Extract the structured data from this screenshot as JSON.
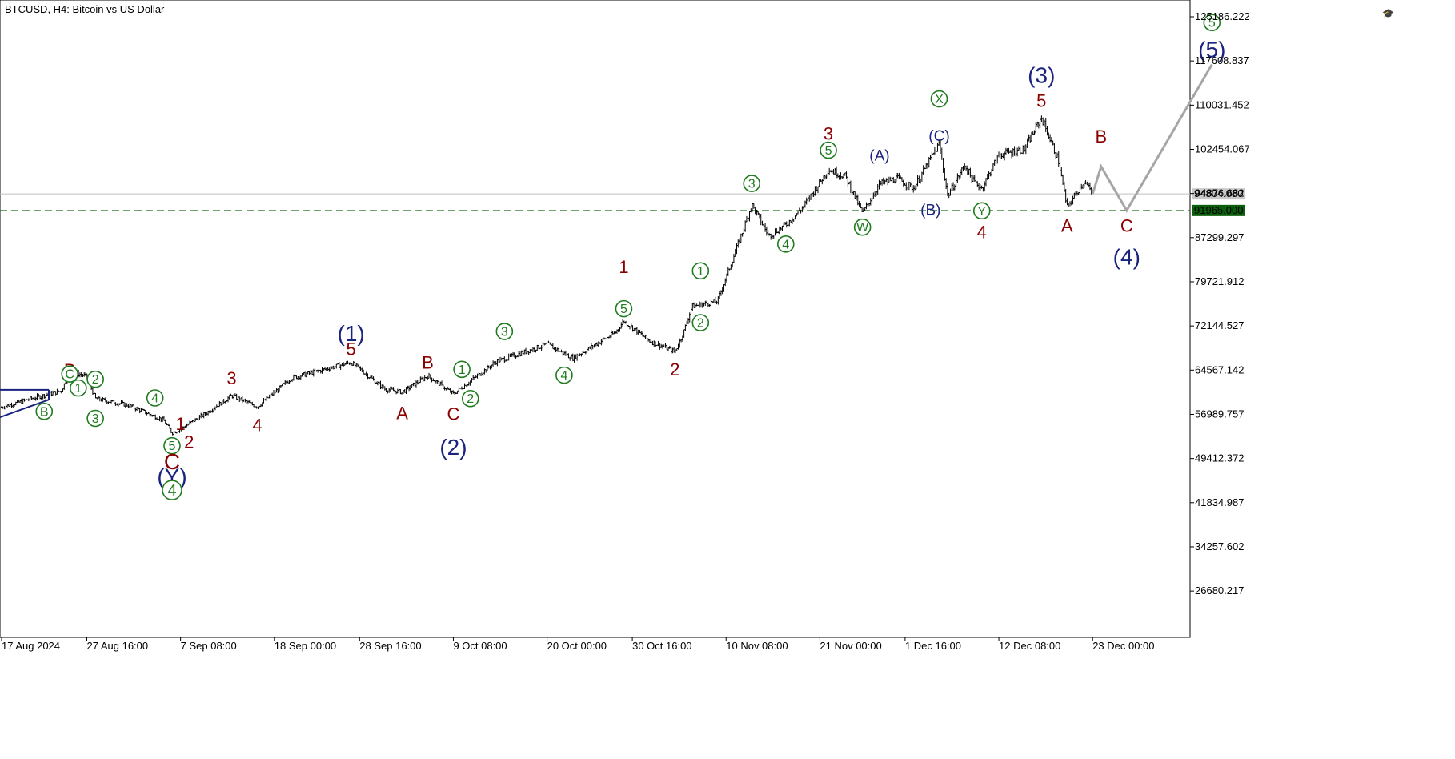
{
  "symbol_text": "BTCUSD, H4:  Bitcoin vs US Dollar",
  "colors": {
    "background": "#ffffff",
    "candle": "#000000",
    "projection": "#a6a6a6",
    "dark_red": "#8b0000",
    "navy": "#1a237e",
    "green": "#1e7b1e",
    "current_price_line": "#c0c0c0",
    "target_line": "#1a6b1a",
    "target_badge": "#0b5e0b",
    "current_badge": "#c8c8c8"
  },
  "icons": [
    "graduation-cap-icon",
    "trash-icon"
  ],
  "chart_data": {
    "type": "candlestick",
    "timeframe": "H4",
    "y_axis": {
      "ticks": [
        "125186.222",
        "117608.837",
        "110031.452",
        "102454.067",
        "94876.682",
        "87299.297",
        "79721.912",
        "72144.527",
        "64567.142",
        "56989.757",
        "49412.372",
        "41834.987",
        "34257.602",
        "26680.217"
      ]
    },
    "x_axis": {
      "ticks": [
        "17 Aug 2024",
        "27 Aug 16:00",
        "7 Sep 08:00",
        "18 Sep 00:00",
        "28 Sep 16:00",
        "9 Oct 08:00",
        "20 Oct 00:00",
        "30 Oct 16:00",
        "10 Nov 08:00",
        "21 Nov 00:00",
        "1 Dec 16:00",
        "12 Dec 08:00",
        "23 Dec 00:00"
      ]
    },
    "price_lines": [
      {
        "name": "current",
        "value": 94804.08,
        "label": "94804.080"
      },
      {
        "name": "target",
        "value": 91965.0,
        "label": "91965.000"
      }
    ],
    "price_path": [
      {
        "date": "2024-08-17",
        "price": 58200
      },
      {
        "date": "2024-08-20",
        "price": 59500
      },
      {
        "date": "2024-08-24",
        "price": 61000
      },
      {
        "date": "2024-08-25",
        "price": 64300
      },
      {
        "date": "2024-08-27",
        "price": 63500
      },
      {
        "date": "2024-08-28",
        "price": 59700
      },
      {
        "date": "2024-09-01",
        "price": 58500
      },
      {
        "date": "2024-09-05",
        "price": 56000
      },
      {
        "date": "2024-09-06",
        "price": 53800
      },
      {
        "date": "2024-09-07",
        "price": 54500
      },
      {
        "date": "2024-09-10",
        "price": 57200
      },
      {
        "date": "2024-09-13",
        "price": 60200
      },
      {
        "date": "2024-09-16",
        "price": 58300
      },
      {
        "date": "2024-09-20",
        "price": 63200
      },
      {
        "date": "2024-09-27",
        "price": 65900
      },
      {
        "date": "2024-10-01",
        "price": 61300
      },
      {
        "date": "2024-10-03",
        "price": 60800
      },
      {
        "date": "2024-10-06",
        "price": 63600
      },
      {
        "date": "2024-10-09",
        "price": 60500
      },
      {
        "date": "2024-10-14",
        "price": 66000
      },
      {
        "date": "2024-10-20",
        "price": 69000
      },
      {
        "date": "2024-10-23",
        "price": 66600
      },
      {
        "date": "2024-10-28",
        "price": 71000
      },
      {
        "date": "2024-10-29",
        "price": 73000
      },
      {
        "date": "2024-11-01",
        "price": 69600
      },
      {
        "date": "2024-11-04",
        "price": 67700
      },
      {
        "date": "2024-11-05",
        "price": 71000
      },
      {
        "date": "2024-11-06",
        "price": 75500
      },
      {
        "date": "2024-11-09",
        "price": 76400
      },
      {
        "date": "2024-11-10",
        "price": 80500
      },
      {
        "date": "2024-11-12",
        "price": 88600
      },
      {
        "date": "2024-11-13",
        "price": 93000
      },
      {
        "date": "2024-11-15",
        "price": 87600
      },
      {
        "date": "2024-11-17",
        "price": 89500
      },
      {
        "date": "2024-11-19",
        "price": 92500
      },
      {
        "date": "2024-11-22",
        "price": 99000
      },
      {
        "date": "2024-11-24",
        "price": 97800
      },
      {
        "date": "2024-11-26",
        "price": 91500
      },
      {
        "date": "2024-11-28",
        "price": 96500
      },
      {
        "date": "2024-11-30",
        "price": 97500
      },
      {
        "date": "2024-12-02",
        "price": 95800
      },
      {
        "date": "2024-12-05",
        "price": 103400
      },
      {
        "date": "2024-12-06",
        "price": 94500
      },
      {
        "date": "2024-12-08",
        "price": 99800
      },
      {
        "date": "2024-12-09",
        "price": 97000
      },
      {
        "date": "2024-12-10",
        "price": 95800
      },
      {
        "date": "2024-12-12",
        "price": 101500
      },
      {
        "date": "2024-12-15",
        "price": 102500
      },
      {
        "date": "2024-12-17",
        "price": 107900
      },
      {
        "date": "2024-12-19",
        "price": 100500
      },
      {
        "date": "2024-12-20",
        "price": 92500
      },
      {
        "date": "2024-12-22",
        "price": 97000
      },
      {
        "date": "2024-12-23",
        "price": 94800
      }
    ],
    "projection_path": [
      {
        "date": "2024-12-23",
        "price": 94800,
        "label": "A"
      },
      {
        "date": "2024-12-24",
        "price": 99500,
        "label": "B"
      },
      {
        "date": "2024-12-27",
        "price": 91965,
        "label": "C"
      },
      {
        "date": "2025-01-06",
        "price": 117000,
        "label": "(5)"
      }
    ],
    "annotations": [
      {
        "text": "B",
        "date": "2024-08-25",
        "price": 64700,
        "style": "dark-red"
      },
      {
        "text": "C",
        "date": "2024-08-25",
        "price": 63900,
        "style": "green-circle"
      },
      {
        "text": "2",
        "date": "2024-08-28",
        "price": 63000,
        "style": "green-circle"
      },
      {
        "text": "1",
        "date": "2024-08-26",
        "price": 61500,
        "style": "green-circle"
      },
      {
        "text": "3",
        "date": "2024-08-28",
        "price": 56300,
        "style": "green-circle"
      },
      {
        "text": "B",
        "date": "2024-08-22",
        "price": 57500,
        "style": "green-circle"
      },
      {
        "text": "4",
        "date": "2024-09-04",
        "price": 59800,
        "style": "green-circle"
      },
      {
        "text": "1",
        "date": "2024-09-07",
        "price": 55500,
        "style": "dark-red"
      },
      {
        "text": "2",
        "date": "2024-09-08",
        "price": 52400,
        "style": "dark-red"
      },
      {
        "text": "5",
        "date": "2024-09-06",
        "price": 51600,
        "style": "green-circle"
      },
      {
        "text": "C",
        "date": "2024-09-06",
        "price": 49000,
        "style": "dark-red-large"
      },
      {
        "text": "(Y)",
        "date": "2024-09-06",
        "price": 46500,
        "style": "navy"
      },
      {
        "text": "4",
        "date": "2024-09-06",
        "price": 44000,
        "style": "green-circle-large"
      },
      {
        "text": "3",
        "date": "2024-09-13",
        "price": 63300,
        "style": "dark-red"
      },
      {
        "text": "4",
        "date": "2024-09-16",
        "price": 55300,
        "style": "dark-red"
      },
      {
        "text": "5",
        "date": "2024-09-27",
        "price": 68300,
        "style": "dark-red"
      },
      {
        "text": "(1)",
        "date": "2024-09-27",
        "price": 71000,
        "style": "navy"
      },
      {
        "text": "A",
        "date": "2024-10-03",
        "price": 57300,
        "style": "dark-red"
      },
      {
        "text": "B",
        "date": "2024-10-06",
        "price": 66000,
        "style": "dark-red"
      },
      {
        "text": "C",
        "date": "2024-10-09",
        "price": 57200,
        "style": "dark-red"
      },
      {
        "text": "(2)",
        "date": "2024-10-09",
        "price": 51500,
        "style": "navy"
      },
      {
        "text": "1",
        "date": "2024-10-10",
        "price": 64700,
        "style": "green-circle"
      },
      {
        "text": "2",
        "date": "2024-10-11",
        "price": 59700,
        "style": "green-circle"
      },
      {
        "text": "3",
        "date": "2024-10-15",
        "price": 71200,
        "style": "green-circle"
      },
      {
        "text": "4",
        "date": "2024-10-22",
        "price": 63700,
        "style": "green-circle"
      },
      {
        "text": "5",
        "date": "2024-10-29",
        "price": 75100,
        "style": "green-circle"
      },
      {
        "text": "1",
        "date": "2024-10-29",
        "price": 82400,
        "style": "dark-red"
      },
      {
        "text": "2",
        "date": "2024-11-04",
        "price": 64800,
        "style": "dark-red"
      },
      {
        "text": "1",
        "date": "2024-11-07",
        "price": 81600,
        "style": "green-circle"
      },
      {
        "text": "2",
        "date": "2024-11-07",
        "price": 72700,
        "style": "green-circle"
      },
      {
        "text": "3",
        "date": "2024-11-13",
        "price": 96600,
        "style": "green-circle"
      },
      {
        "text": "4",
        "date": "2024-11-17",
        "price": 86200,
        "style": "green-circle"
      },
      {
        "text": "3",
        "date": "2024-11-22",
        "price": 105300,
        "style": "dark-red"
      },
      {
        "text": "5",
        "date": "2024-11-22",
        "price": 102300,
        "style": "green-circle"
      },
      {
        "text": "W",
        "date": "2024-11-26",
        "price": 89100,
        "style": "green-circle"
      },
      {
        "text": "(A)",
        "date": "2024-11-28",
        "price": 101400,
        "style": "navy-small"
      },
      {
        "text": "(B)",
        "date": "2024-12-04",
        "price": 92100,
        "style": "navy-small"
      },
      {
        "text": "(C)",
        "date": "2024-12-05",
        "price": 104800,
        "style": "navy-small"
      },
      {
        "text": "X",
        "date": "2024-12-05",
        "price": 111100,
        "style": "green-circle"
      },
      {
        "text": "Y",
        "date": "2024-12-10",
        "price": 91900,
        "style": "green-circle"
      },
      {
        "text": "4",
        "date": "2024-12-10",
        "price": 88400,
        "style": "dark-red"
      },
      {
        "text": "(3)",
        "date": "2024-12-17",
        "price": 115300,
        "style": "navy"
      },
      {
        "text": "5",
        "date": "2024-12-17",
        "price": 110900,
        "style": "dark-red"
      },
      {
        "text": "A",
        "date": "2024-12-20",
        "price": 89500,
        "style": "dark-red"
      },
      {
        "text": "B",
        "date": "2024-12-24",
        "price": 104800,
        "style": "dark-red"
      },
      {
        "text": "C",
        "date": "2024-12-27",
        "price": 89500,
        "style": "dark-red"
      },
      {
        "text": "(4)",
        "date": "2024-12-27",
        "price": 84100,
        "style": "navy"
      },
      {
        "text": "(5)",
        "date": "2025-01-06",
        "price": 119700,
        "style": "navy"
      },
      {
        "text": "5",
        "date": "2025-01-06",
        "price": 124200,
        "style": "green-circle"
      }
    ]
  }
}
